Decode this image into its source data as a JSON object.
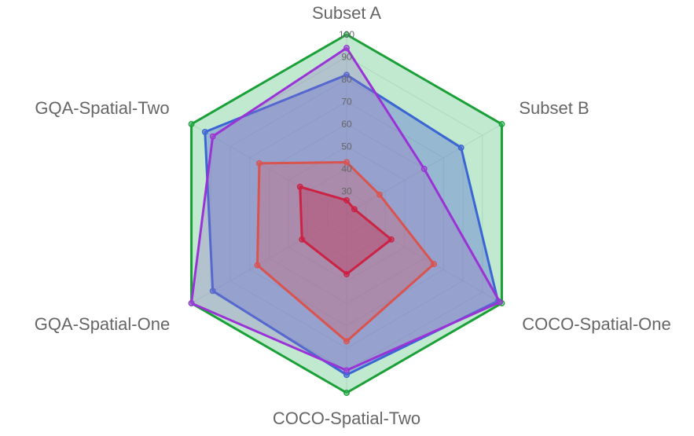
{
  "chart_data": {
    "type": "radar",
    "axes": [
      "Subset A",
      "Subset B",
      "COCO-Spatial-One",
      "COCO-Spatial-Two",
      "GQA-Spatial-One",
      "GQA-Spatial-Two"
    ],
    "r_ticks": [
      "30",
      "40",
      "50",
      "60",
      "70",
      "80",
      "90",
      "100"
    ],
    "r_range": [
      20,
      100
    ],
    "grid": true,
    "series": [
      {
        "values": [
          100,
          100,
          100,
          100,
          100,
          100
        ],
        "color": "#1aa037",
        "fill": "rgba(75, 192, 120, 0.35)"
      },
      {
        "values": [
          82,
          79,
          98,
          92,
          89,
          93
        ],
        "color": "#3a66d4",
        "fill": "rgba(90, 110, 210, 0.40)"
      },
      {
        "values": [
          94,
          60,
          99,
          90,
          100,
          89
        ],
        "color": "#9a33d6",
        "fill": "rgba(150, 110, 200, 0.30)"
      },
      {
        "values": [
          43,
          37,
          65,
          77,
          66,
          65
        ],
        "color": "#d9534f",
        "fill": "rgba(220, 90, 90, 0.30)"
      },
      {
        "values": [
          26,
          24,
          43,
          47,
          43,
          44
        ],
        "color": "#cc2244",
        "fill": "rgba(200, 30, 70, 0.30)"
      }
    ]
  }
}
